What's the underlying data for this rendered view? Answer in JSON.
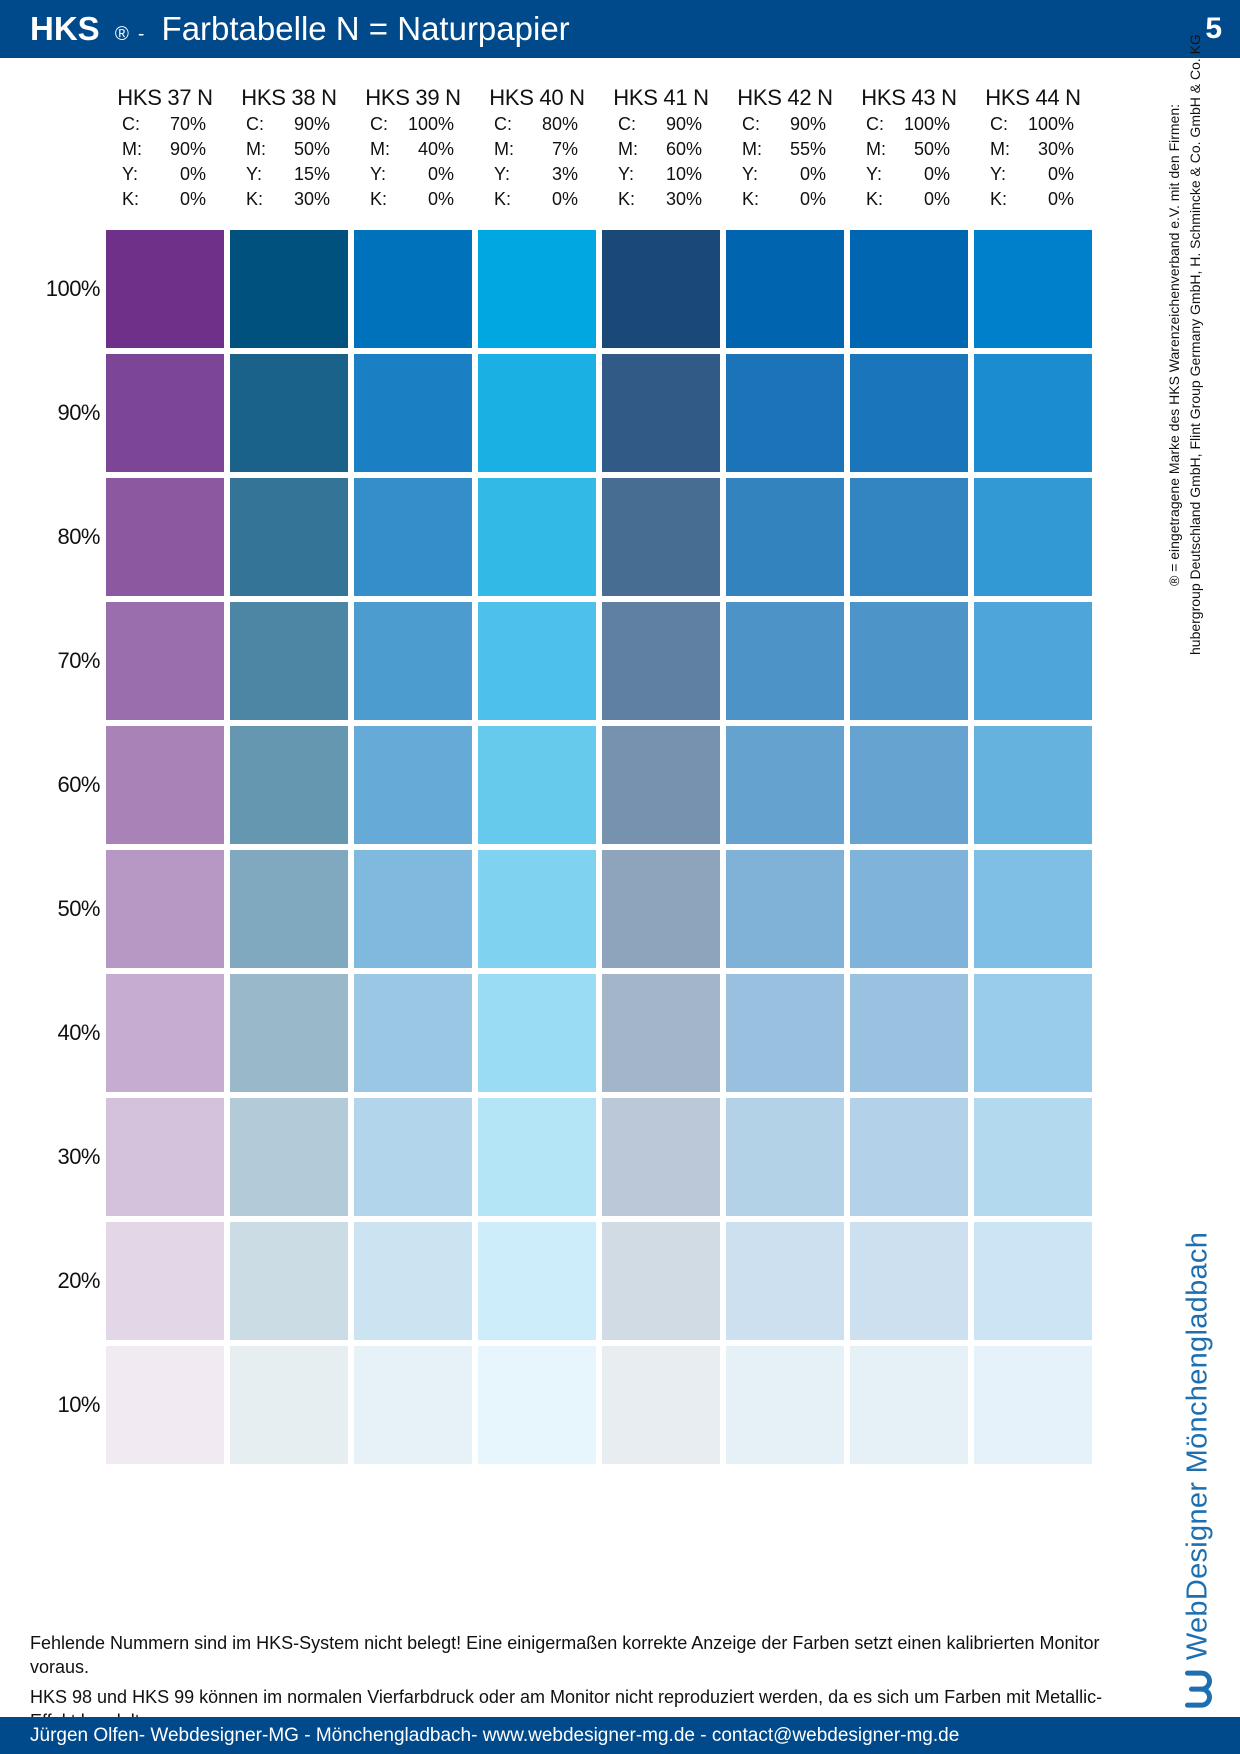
{
  "header": {
    "brand": "HKS",
    "reg_mark": "®",
    "dash": "-",
    "title": "Farbtabelle N = Naturpapier",
    "page_number": "5"
  },
  "cmyk_labels": [
    "C:",
    "M:",
    "Y:",
    "K:"
  ],
  "columns": [
    {
      "name": "HKS 37 N",
      "c": "70%",
      "m": "90%",
      "y": "0%",
      "k": "0%",
      "color": "#6f3089"
    },
    {
      "name": "HKS 38 N",
      "c": "90%",
      "m": "50%",
      "y": "15%",
      "k": "30%",
      "color": "#00517d"
    },
    {
      "name": "HKS 39 N",
      "c": "100%",
      "m": "40%",
      "y": "0%",
      "k": "0%",
      "color": "#0072bc"
    },
    {
      "name": "HKS 40 N",
      "c": "80%",
      "m": "7%",
      "y": "3%",
      "k": "0%",
      "color": "#00a7e0"
    },
    {
      "name": "HKS 41 N",
      "c": "90%",
      "m": "60%",
      "y": "10%",
      "k": "30%",
      "color": "#1a4978"
    },
    {
      "name": "HKS 42 N",
      "c": "90%",
      "m": "55%",
      "y": "0%",
      "k": "0%",
      "color": "#0064af"
    },
    {
      "name": "HKS 43 N",
      "c": "100%",
      "m": "50%",
      "y": "0%",
      "k": "0%",
      "color": "#0066b2"
    },
    {
      "name": "HKS 44 N",
      "c": "100%",
      "m": "30%",
      "y": "0%",
      "k": "0%",
      "color": "#007fca"
    }
  ],
  "tints": [
    {
      "label": "100%",
      "fraction": 1.0
    },
    {
      "label": "90%",
      "fraction": 0.9
    },
    {
      "label": "80%",
      "fraction": 0.8
    },
    {
      "label": "70%",
      "fraction": 0.7
    },
    {
      "label": "60%",
      "fraction": 0.6
    },
    {
      "label": "50%",
      "fraction": 0.5
    },
    {
      "label": "40%",
      "fraction": 0.4
    },
    {
      "label": "30%",
      "fraction": 0.3
    },
    {
      "label": "20%",
      "fraction": 0.2
    },
    {
      "label": "10%",
      "fraction": 0.1
    }
  ],
  "side_note": {
    "line1": "® = eingetragene Marke des HKS Warenzeichenverband e.V. mit den Firmen:",
    "line2": "hubergroup Deutschland GmbH, Flint Group Germany GmbH, H. Schmincke & Co. GmbH & Co. KG"
  },
  "logo": {
    "text": "WebDesigner Mönchengladbach",
    "icon": "wd-logo-icon",
    "color": "#1e6fb0"
  },
  "notes": {
    "line1": "Fehlende Nummern sind im HKS-System nicht belegt! Eine einigermaßen korrekte Anzeige der Farben setzt einen kalibrierten Monitor voraus.",
    "line2": "HKS 98 und HKS 99 können im normalen Vierfarbdruck oder am Monitor nicht reproduziert werden, da es sich um Farben mit Metallic-Effekt handelt."
  },
  "footer": {
    "text": "Jürgen Olfen- Webdesigner-MG - Mönchengladbach- www.webdesigner-mg.de - contact@webdesigner-mg.de"
  },
  "colors": {
    "bar_blue": "#004a8c",
    "paper": "#ffffff"
  }
}
